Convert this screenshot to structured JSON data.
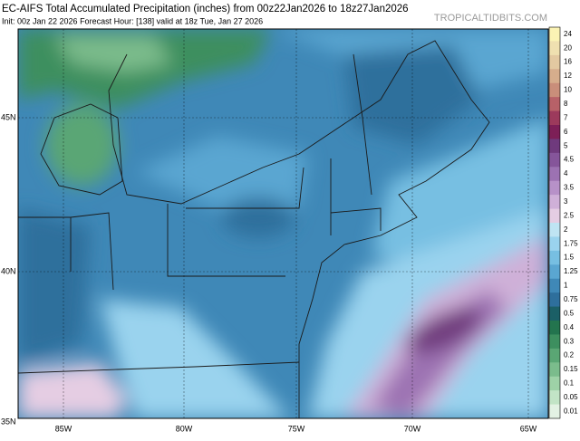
{
  "header": {
    "title": "EC-AIFS Total Accumulated Precipitation (inches) from 00z22Jan2026 to 18z27Jan2026",
    "subtitle": "Init: 00z Jan 22 2026   Forecast Hour: [138]   valid at 18z Tue, Jan 27 2026",
    "site": "TROPICALTIDBITS.COM"
  },
  "map": {
    "lon_labels": [
      "85W",
      "80W",
      "75W",
      "70W",
      "65W"
    ],
    "lat_labels": [
      "45N",
      "40N",
      "35N"
    ]
  },
  "colorbar": {
    "items": [
      {
        "label": "24",
        "color": "#fbf3b4"
      },
      {
        "label": "20",
        "color": "#efe0b0"
      },
      {
        "label": "16",
        "color": "#e3c9a1"
      },
      {
        "label": "12",
        "color": "#d6ad8c"
      },
      {
        "label": "10",
        "color": "#c98e7a"
      },
      {
        "label": "8",
        "color": "#b76168"
      },
      {
        "label": "7",
        "color": "#9c3a5c"
      },
      {
        "label": "6",
        "color": "#7d1f57"
      },
      {
        "label": "5",
        "color": "#6f3a7d"
      },
      {
        "label": "4.5",
        "color": "#85559a"
      },
      {
        "label": "4",
        "color": "#9c72b2"
      },
      {
        "label": "3.5",
        "color": "#b791c8"
      },
      {
        "label": "3",
        "color": "#cfb0d8"
      },
      {
        "label": "2.5",
        "color": "#e5cde3"
      },
      {
        "label": "2",
        "color": "#bfe4f3"
      },
      {
        "label": "1.75",
        "color": "#9ad3ee"
      },
      {
        "label": "1.5",
        "color": "#77bfe2"
      },
      {
        "label": "1.25",
        "color": "#5aa6d1"
      },
      {
        "label": "1",
        "color": "#3f88b7"
      },
      {
        "label": "0.75",
        "color": "#2e6f9c"
      },
      {
        "label": "0.5",
        "color": "#1b5f66"
      },
      {
        "label": "0.4",
        "color": "#23744e"
      },
      {
        "label": "0.3",
        "color": "#3d8f5f"
      },
      {
        "label": "0.2",
        "color": "#5aa674"
      },
      {
        "label": "0.15",
        "color": "#7bbc8c"
      },
      {
        "label": "0.1",
        "color": "#9ed2a7"
      },
      {
        "label": "0.05",
        "color": "#c2e4c6"
      },
      {
        "label": "0.01",
        "color": "#e3f2e4"
      }
    ]
  }
}
